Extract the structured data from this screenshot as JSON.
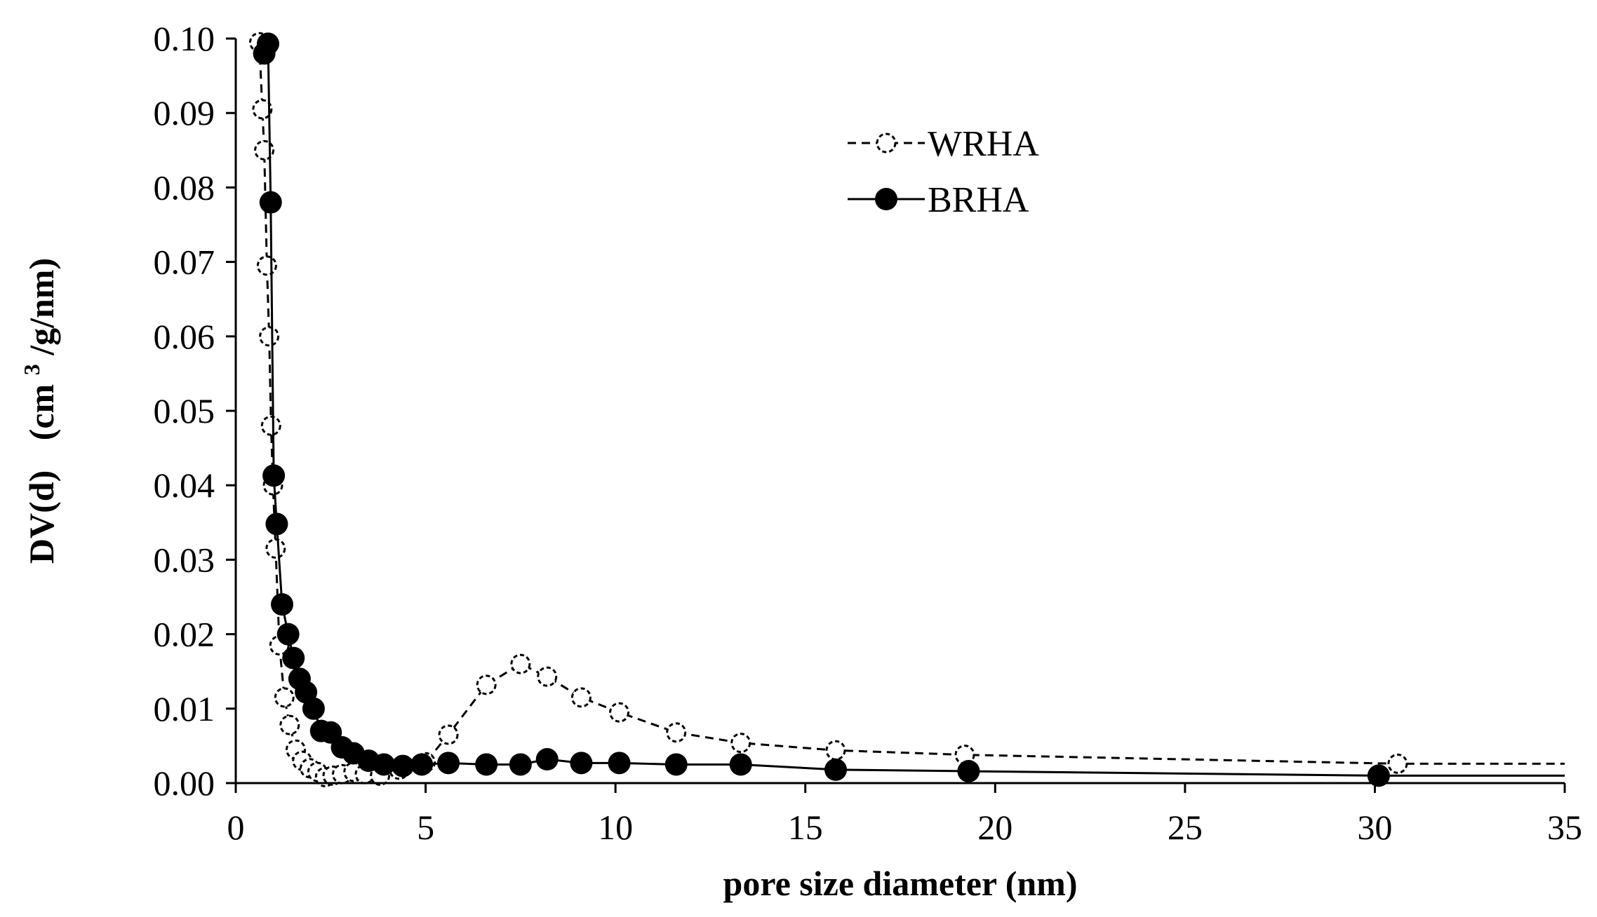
{
  "chart_data": {
    "type": "scatter",
    "title": "",
    "xlabel": "pore size diameter (nm)",
    "ylabel_main": "DV(d)",
    "ylabel_unit_pre": "(cm",
    "ylabel_unit_sup": "3",
    "ylabel_unit_post": "/g/nm)",
    "xlim": [
      0,
      35
    ],
    "ylim": [
      0,
      0.1
    ],
    "x_ticks": [
      "0",
      "5",
      "10",
      "15",
      "20",
      "25",
      "30",
      "35"
    ],
    "y_ticks": [
      "0.00",
      "0.01",
      "0.02",
      "0.03",
      "0.04",
      "0.05",
      "0.06",
      "0.07",
      "0.08",
      "0.09",
      "0.10"
    ],
    "grid": false,
    "legend_position": "top-right",
    "series": [
      {
        "name": "WRHA",
        "line_style": "dashed",
        "marker": "open-circle",
        "color": "#000000",
        "x": [
          0.62,
          0.7,
          0.75,
          0.82,
          0.88,
          0.93,
          0.98,
          1.05,
          1.15,
          1.28,
          1.42,
          1.58,
          1.75,
          1.95,
          2.15,
          2.35,
          2.55,
          2.8,
          3.1,
          3.4,
          3.8,
          4.3,
          5.0,
          5.6,
          6.6,
          7.5,
          8.2,
          9.1,
          10.1,
          11.6,
          13.3,
          15.8,
          19.2,
          30.6,
          35.0
        ],
        "y": [
          0.0995,
          0.0905,
          0.085,
          0.0695,
          0.06,
          0.048,
          0.04,
          0.0315,
          0.0185,
          0.0115,
          0.0078,
          0.0045,
          0.003,
          0.002,
          0.0015,
          0.0008,
          0.001,
          0.0012,
          0.0015,
          0.0012,
          0.001,
          0.0018,
          0.0028,
          0.0065,
          0.0132,
          0.016,
          0.0143,
          0.0115,
          0.0095,
          0.0068,
          0.0054,
          0.0044,
          0.0038,
          0.0026,
          0.0026
        ]
      },
      {
        "name": "BRHA",
        "line_style": "solid",
        "marker": "filled-circle",
        "color": "#000000",
        "x": [
          0.75,
          0.85,
          0.92,
          1.0,
          1.08,
          1.22,
          1.38,
          1.52,
          1.68,
          1.85,
          2.05,
          2.25,
          2.5,
          2.8,
          3.1,
          3.5,
          3.9,
          4.4,
          4.9,
          5.6,
          6.6,
          7.5,
          8.2,
          9.1,
          10.1,
          11.6,
          13.3,
          15.8,
          19.3,
          30.1,
          35.0
        ],
        "y": [
          0.098,
          0.0993,
          0.078,
          0.0413,
          0.0348,
          0.024,
          0.02,
          0.0168,
          0.014,
          0.0122,
          0.01,
          0.007,
          0.0068,
          0.0048,
          0.004,
          0.003,
          0.0025,
          0.0023,
          0.0025,
          0.0027,
          0.0025,
          0.0025,
          0.0032,
          0.0027,
          0.0027,
          0.0025,
          0.0025,
          0.0018,
          0.0016,
          0.001,
          0.001
        ]
      }
    ]
  }
}
